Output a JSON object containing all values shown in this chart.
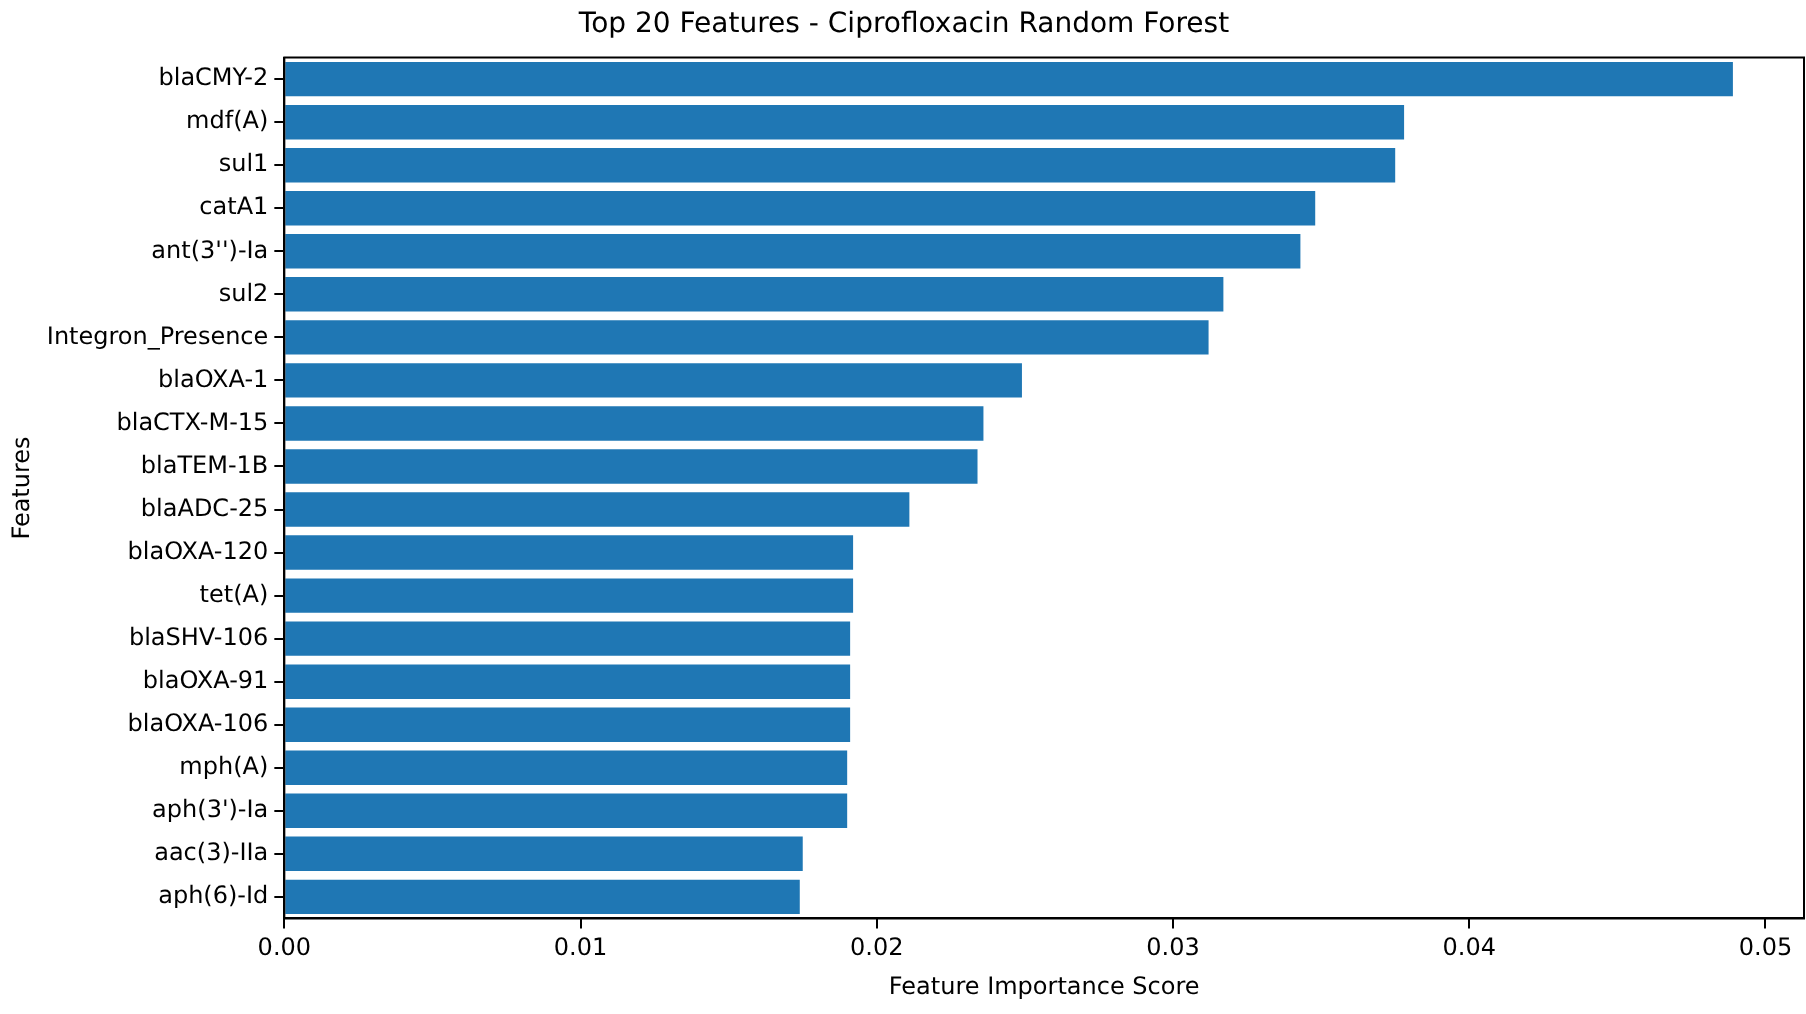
{
  "chart_data": {
    "type": "bar",
    "orientation": "horizontal",
    "title": "Top 20 Features - Ciprofloxacin Random Forest",
    "xlabel": "Feature Importance Score",
    "ylabel": "Features",
    "categories": [
      "blaCMY-2",
      "mdf(A)",
      "sul1",
      "catA1",
      "ant(3'')-Ia",
      "sul2",
      "Integron_Presence",
      "blaOXA-1",
      "blaCTX-M-15",
      "blaTEM-1B",
      "blaADC-25",
      "blaOXA-120",
      "tet(A)",
      "blaSHV-106",
      "blaOXA-91",
      "blaOXA-106",
      "mph(A)",
      "aph(3')-Ia",
      "aac(3)-IIa",
      "aph(6)-Id"
    ],
    "values": [
      0.0489,
      0.0378,
      0.0375,
      0.0348,
      0.0343,
      0.0317,
      0.0312,
      0.0249,
      0.0236,
      0.0234,
      0.0211,
      0.0192,
      0.0192,
      0.0191,
      0.0191,
      0.0191,
      0.019,
      0.019,
      0.0175,
      0.0174
    ],
    "color": "#1f77b4",
    "xlim": [
      0,
      0.0513
    ],
    "xticks": [
      {
        "value": 0,
        "label": "0.00"
      },
      {
        "value": 0.01,
        "label": "0.01"
      },
      {
        "value": 0.02,
        "label": "0.02"
      },
      {
        "value": 0.03,
        "label": "0.03"
      },
      {
        "value": 0.04,
        "label": "0.04"
      },
      {
        "value": 0.05,
        "label": "0.05"
      }
    ],
    "grid": false,
    "legend": false
  }
}
